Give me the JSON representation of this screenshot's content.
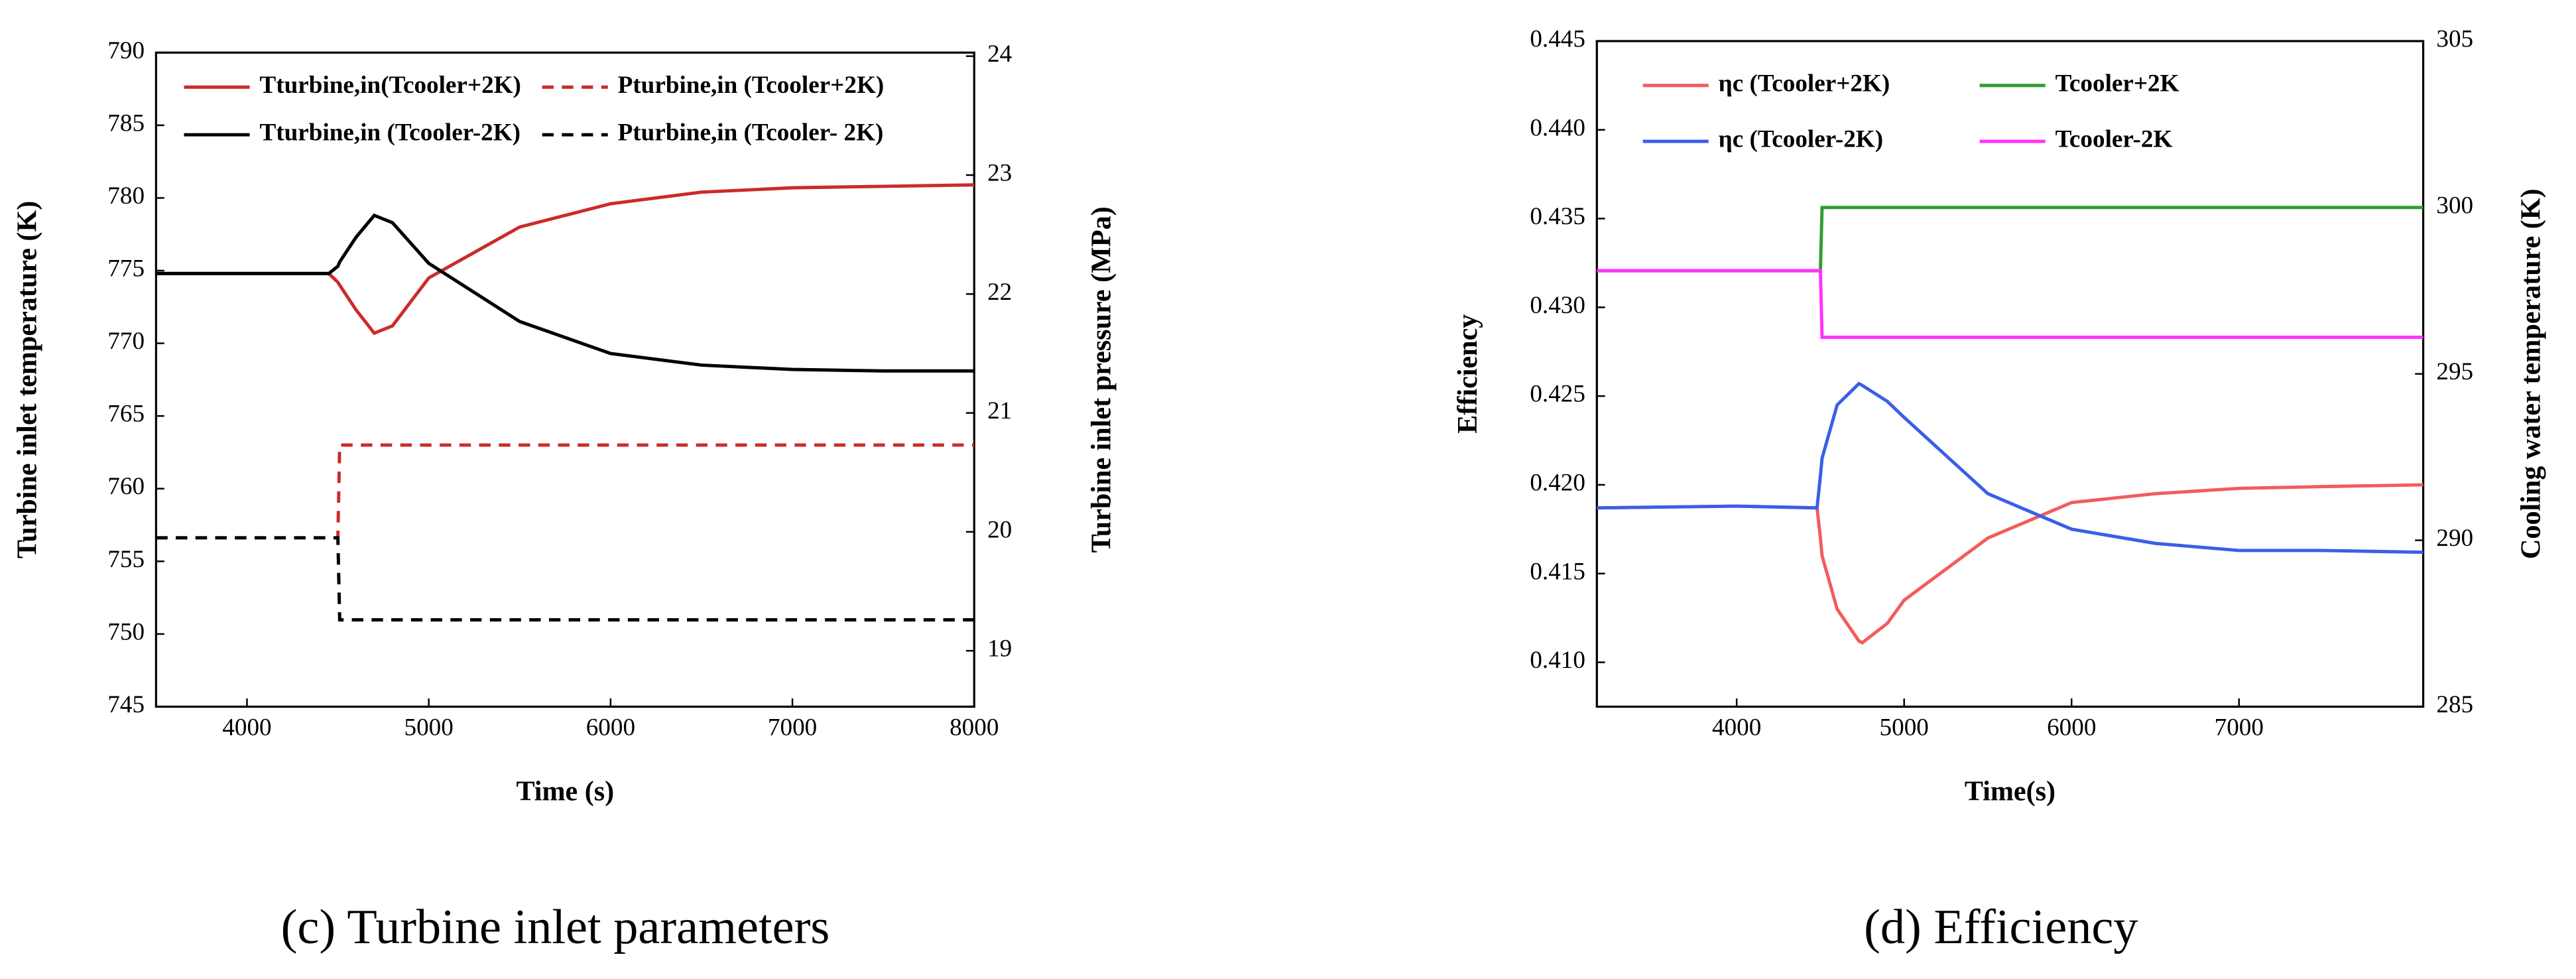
{
  "chart_data": [
    {
      "type": "line",
      "caption": "(c) Turbine inlet parameters",
      "x_label": "Time (s)",
      "y_label": "Turbine inlet temperature  (K)",
      "y2_label": "Turbine inlet pressure  (MPa)",
      "x": [
        3500,
        4000,
        4450,
        4500,
        4510,
        4600,
        4700,
        4800,
        5000,
        5500,
        6000,
        6500,
        7000,
        7500,
        8000
      ],
      "xlim": [
        3500,
        8000
      ],
      "xticks": [
        4000,
        5000,
        6000,
        7000,
        8000
      ],
      "ylim": [
        745,
        790
      ],
      "yticks": [
        745,
        750,
        755,
        760,
        765,
        770,
        775,
        780,
        785,
        790
      ],
      "y2lim": [
        18.53,
        24.03
      ],
      "y2ticks": [
        19,
        20,
        21,
        22,
        23,
        24
      ],
      "series": [
        {
          "name": "Tturbine,in(Tcooler+2K)",
          "color": "#cc2b2b",
          "style": "solid",
          "values": [
            774.8,
            774.8,
            774.8,
            774.2,
            774.0,
            772.3,
            770.7,
            771.2,
            774.5,
            778.0,
            779.6,
            780.4,
            780.7,
            780.8,
            780.9
          ]
        },
        {
          "name": "Tturbine,in (Tcooler-2K)",
          "color": "#000000",
          "style": "solid",
          "values": [
            774.8,
            774.8,
            774.8,
            775.3,
            775.6,
            777.3,
            778.8,
            778.3,
            775.5,
            771.5,
            769.3,
            768.5,
            768.2,
            768.1,
            768.1
          ]
        },
        {
          "name": "Pturbine,in (Tcooler+2K)",
          "color": "#cc2b2b",
          "style": "dashed",
          "axis": "y2",
          "values": [
            19.95,
            19.95,
            19.95,
            19.95,
            20.73,
            20.73,
            20.73,
            20.73,
            20.73,
            20.73,
            20.73,
            20.73,
            20.73,
            20.73,
            20.73
          ]
        },
        {
          "name": "Pturbine,in (Tcooler- 2K)",
          "color": "#000000",
          "style": "dashed",
          "axis": "y2",
          "values": [
            19.95,
            19.95,
            19.95,
            19.95,
            19.26,
            19.26,
            19.26,
            19.26,
            19.26,
            19.26,
            19.26,
            19.26,
            19.26,
            19.26,
            19.26
          ]
        }
      ]
    },
    {
      "type": "line",
      "caption": "(d) Efficiency",
      "x_label": "Time(s)",
      "y_label": "Efficiency",
      "y2_label": "Cooling water temperature (K)",
      "x": [
        3165,
        4000,
        4480,
        4500,
        4510,
        4600,
        4730,
        4750,
        4900,
        5000,
        5500,
        6000,
        6500,
        7000,
        7500,
        8100
      ],
      "xlim": [
        3165,
        8100
      ],
      "xticks": [
        4000,
        5000,
        6000,
        7000
      ],
      "ylim": [
        0.4075,
        0.445
      ],
      "yticks": [
        {
          "value": 0.41,
          "label": "0.410"
        },
        0.415,
        {
          "value": 0.42,
          "label": "0.420"
        },
        0.425,
        {
          "value": 0.43,
          "label": "0.430"
        },
        0.435,
        {
          "value": 0.44,
          "label": "0.440"
        },
        0.445
      ],
      "y2lim": [
        285,
        305
      ],
      "y2ticks": [
        285,
        290,
        295,
        300,
        305
      ],
      "series": [
        {
          "name": "ηc (Tcooler+2K)",
          "color": "#f25c5c",
          "style": "solid",
          "values": [
            0.4187,
            0.4188,
            0.4187,
            0.417,
            0.416,
            0.413,
            0.4112,
            0.4111,
            0.4122,
            0.4135,
            0.417,
            0.419,
            0.4195,
            0.4198,
            0.4199,
            0.42
          ]
        },
        {
          "name": "ηc (Tcooler-2K)",
          "color": "#3a5fe8",
          "style": "solid",
          "values": [
            0.4187,
            0.4188,
            0.4187,
            0.4205,
            0.4215,
            0.4245,
            0.4257,
            0.4256,
            0.4247,
            0.4238,
            0.4195,
            0.4175,
            0.4167,
            0.4163,
            0.4163,
            0.4162
          ]
        },
        {
          "name": "Tcooler+2K",
          "color": "#2e9e2e",
          "style": "solid",
          "axis": "y2",
          "values": [
            298.1,
            298.1,
            298.1,
            298.1,
            300,
            300,
            300,
            300,
            300,
            300,
            300,
            300,
            300,
            300,
            300,
            300
          ]
        },
        {
          "name": "Tcooler-2K",
          "color": "#ff33ff",
          "style": "solid",
          "axis": "y2",
          "values": [
            298.1,
            298.1,
            298.1,
            298.1,
            296.1,
            296.1,
            296.1,
            296.1,
            296.1,
            296.1,
            296.1,
            296.1,
            296.1,
            296.1,
            296.1,
            296.1
          ]
        }
      ]
    }
  ]
}
